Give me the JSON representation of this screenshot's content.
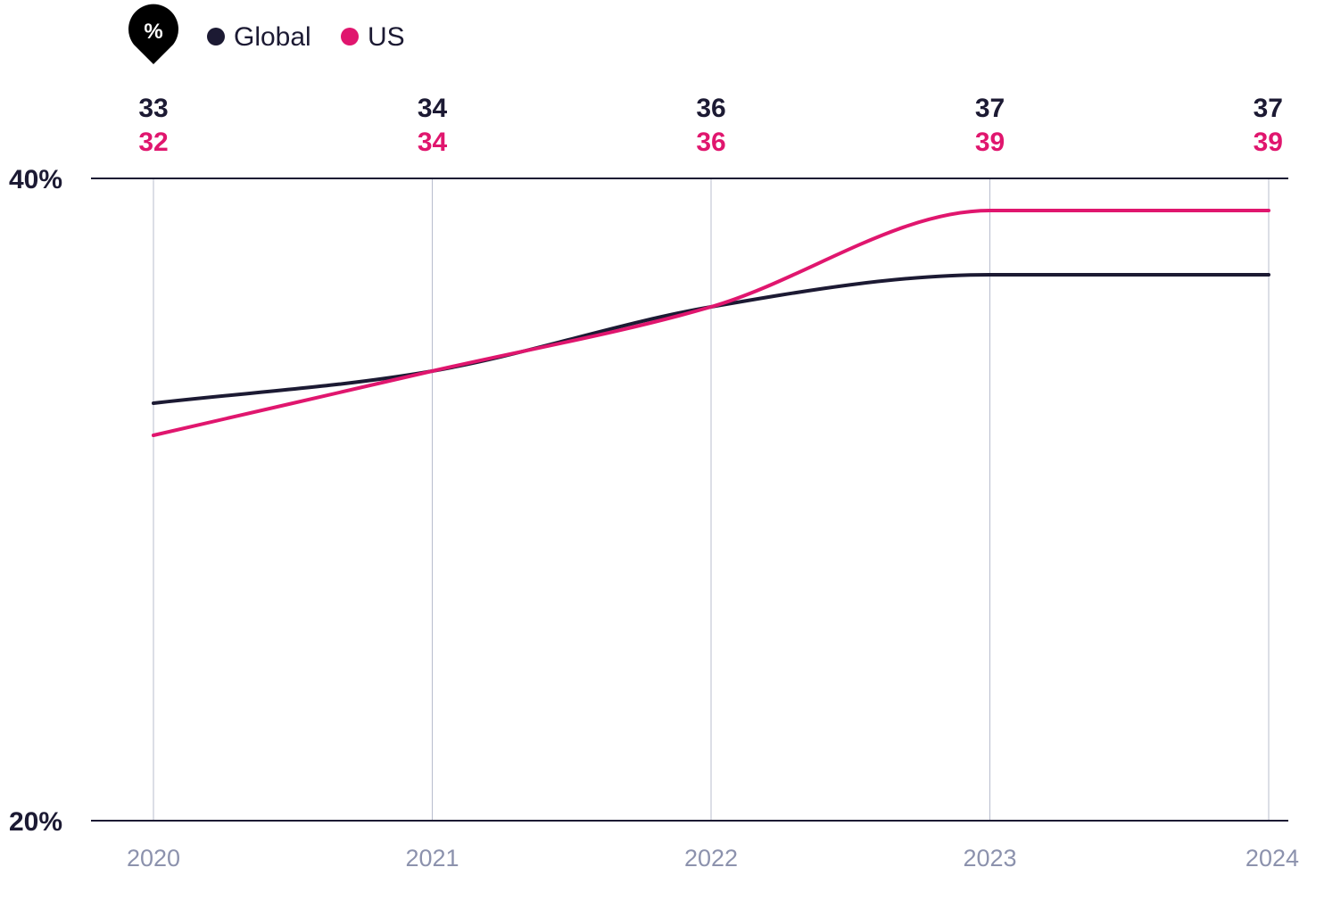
{
  "legend": {
    "icon": "percent-pin-icon",
    "items": [
      {
        "label": "Global",
        "color": "#1c1a33"
      },
      {
        "label": "US",
        "color": "#e0166e"
      }
    ]
  },
  "chart_data": {
    "type": "line",
    "categories": [
      "2020",
      "2021",
      "2022",
      "2023",
      "2024"
    ],
    "series": [
      {
        "name": "Global",
        "color": "#1c1a33",
        "values": [
          33,
          34,
          36,
          37,
          37
        ],
        "labels": [
          "33",
          "34",
          "36",
          "37",
          "37"
        ]
      },
      {
        "name": "US",
        "color": "#e0166e",
        "values": [
          32,
          34,
          36,
          39,
          39
        ],
        "labels": [
          "32",
          "34",
          "36",
          "39",
          "39"
        ]
      }
    ],
    "yticks": [
      {
        "value": 40,
        "label": "40%"
      },
      {
        "value": 20,
        "label": "20%"
      }
    ],
    "ylim": [
      20,
      40
    ],
    "grid": "vertical"
  }
}
